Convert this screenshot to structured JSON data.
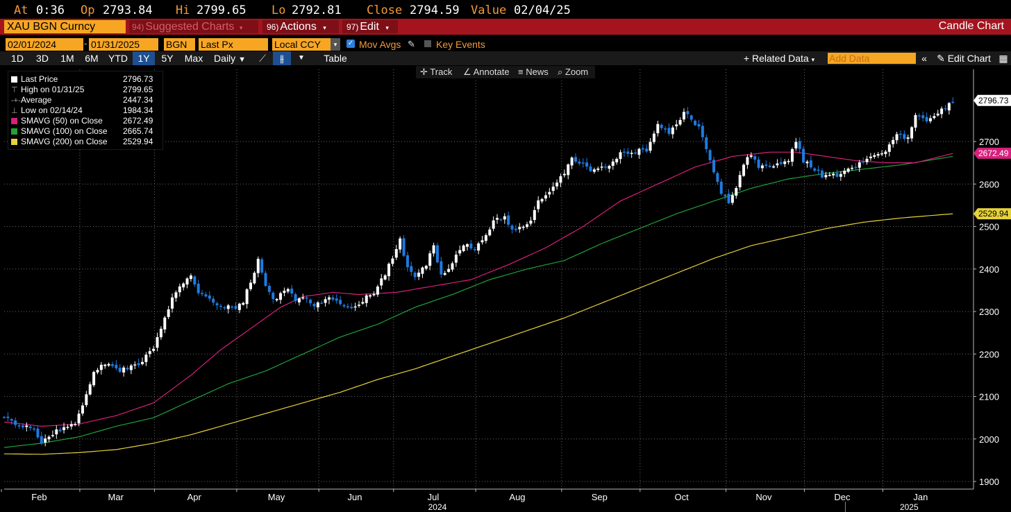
{
  "quote": {
    "at_label": "At",
    "at_value": "0:36",
    "op_label": "Op",
    "op_value": "2793.84",
    "hi_label": "Hi",
    "hi_value": "2799.65",
    "lo_label": "Lo",
    "lo_value": "2792.81",
    "close_label": "Close",
    "close_value": "2794.59",
    "value_label": "Value",
    "value_value": "02/04/25"
  },
  "header": {
    "ticker": "XAU BGN Curncy",
    "suggested_num": "94)",
    "suggested_label": "Suggested Charts",
    "actions_num": "96)",
    "actions_label": "Actions",
    "edit_num": "97)",
    "edit_label": "Edit",
    "chart_type": "Candle Chart"
  },
  "controls": {
    "start_date": "02/01/2024",
    "end_date": "01/31/2025",
    "source": "BGN",
    "field": "Last Px",
    "currency": "Local CCY",
    "mov_avgs": "Mov Avgs",
    "key_events": "Key Events"
  },
  "ranges": [
    "1D",
    "3D",
    "1M",
    "6M",
    "YTD",
    "1Y",
    "5Y",
    "Max"
  ],
  "active_range": "1Y",
  "periodicity": "Daily",
  "table_label": "Table",
  "related_data": "Related Data",
  "add_data_placeholder": "Add Data",
  "edit_chart": "Edit Chart",
  "chart_tools": {
    "track": "Track",
    "annotate": "Annotate",
    "news": "News",
    "zoom": "Zoom"
  },
  "legend": [
    {
      "label": "Last Price",
      "value": "2796.73"
    },
    {
      "label": "High on 01/31/25",
      "value": "2799.65"
    },
    {
      "label": "Average",
      "value": "2447.34"
    },
    {
      "label": "Low on 02/14/24",
      "value": "1984.34"
    },
    {
      "label": "SMAVG (50)  on Close",
      "value": "2672.49"
    },
    {
      "label": "SMAVG (100)  on Close",
      "value": "2665.74"
    },
    {
      "label": "SMAVG (200)  on Close",
      "value": "2529.94"
    }
  ],
  "price_tags": {
    "last": "2796.73",
    "sma50": "2672.49",
    "sma200": "2529.94"
  },
  "colors": {
    "accent_orange": "#f39a3a",
    "header_red": "#a5141e",
    "sma50": "#d6207c",
    "sma100": "#1fa23a",
    "sma200": "#e6d23a",
    "down_candle": "#1e7be0",
    "up_candle": "#ffffff"
  },
  "chart_data": {
    "type": "candlestick",
    "title": "XAU BGN Curncy",
    "y_ticks": [
      1900,
      2000,
      2100,
      2200,
      2300,
      2400,
      2500,
      2600,
      2700
    ],
    "ylim": [
      1880,
      2840
    ],
    "x_month_labels": [
      "Feb",
      "Mar",
      "Apr",
      "May",
      "Jun",
      "Jul",
      "Aug",
      "Sep",
      "Oct",
      "Nov",
      "Dec",
      "Jan"
    ],
    "x_year_labels": [
      {
        "label": "2024",
        "month_index": 5.5
      },
      {
        "label": "2025",
        "month_index": 11.3
      }
    ],
    "month_starts": [
      0,
      21,
      41,
      63,
      85,
      105,
      127,
      150,
      171,
      194,
      215,
      236
    ],
    "total_days": 257,
    "price_path": [
      [
        0,
        2055
      ],
      [
        3,
        2032
      ],
      [
        8,
        2024
      ],
      [
        10,
        1992
      ],
      [
        14,
        2018
      ],
      [
        19,
        2038
      ],
      [
        21,
        2080
      ],
      [
        24,
        2160
      ],
      [
        28,
        2180
      ],
      [
        31,
        2162
      ],
      [
        36,
        2175
      ],
      [
        40,
        2215
      ],
      [
        42,
        2260
      ],
      [
        45,
        2330
      ],
      [
        47,
        2355
      ],
      [
        50,
        2385
      ],
      [
        52,
        2345
      ],
      [
        54,
        2340
      ],
      [
        57,
        2310
      ],
      [
        60,
        2310
      ],
      [
        62,
        2310
      ],
      [
        64,
        2325
      ],
      [
        66,
        2370
      ],
      [
        68,
        2420
      ],
      [
        70,
        2365
      ],
      [
        72,
        2325
      ],
      [
        76,
        2355
      ],
      [
        78,
        2325
      ],
      [
        80,
        2335
      ],
      [
        83,
        2310
      ],
      [
        85,
        2325
      ],
      [
        88,
        2330
      ],
      [
        91,
        2315
      ],
      [
        94,
        2310
      ],
      [
        97,
        2335
      ],
      [
        99,
        2345
      ],
      [
        102,
        2390
      ],
      [
        104,
        2425
      ],
      [
        106,
        2470
      ],
      [
        108,
        2400
      ],
      [
        110,
        2380
      ],
      [
        113,
        2410
      ],
      [
        115,
        2455
      ],
      [
        117,
        2385
      ],
      [
        120,
        2415
      ],
      [
        123,
        2460
      ],
      [
        126,
        2447
      ],
      [
        129,
        2480
      ],
      [
        131,
        2515
      ],
      [
        134,
        2520
      ],
      [
        136,
        2490
      ],
      [
        139,
        2500
      ],
      [
        141,
        2515
      ],
      [
        143,
        2560
      ],
      [
        146,
        2580
      ],
      [
        150,
        2625
      ],
      [
        152,
        2660
      ],
      [
        154,
        2650
      ],
      [
        157,
        2635
      ],
      [
        160,
        2640
      ],
      [
        162,
        2640
      ],
      [
        165,
        2670
      ],
      [
        168,
        2670
      ],
      [
        170,
        2680
      ],
      [
        172,
        2680
      ],
      [
        175,
        2740
      ],
      [
        178,
        2720
      ],
      [
        180,
        2738
      ],
      [
        182,
        2770
      ],
      [
        184,
        2752
      ],
      [
        186,
        2735
      ],
      [
        188,
        2680
      ],
      [
        190,
        2630
      ],
      [
        192,
        2580
      ],
      [
        194,
        2560
      ],
      [
        196,
        2590
      ],
      [
        198,
        2650
      ],
      [
        200,
        2670
      ],
      [
        202,
        2640
      ],
      [
        205,
        2645
      ],
      [
        208,
        2650
      ],
      [
        210,
        2655
      ],
      [
        212,
        2700
      ],
      [
        214,
        2655
      ],
      [
        217,
        2635
      ],
      [
        219,
        2620
      ],
      [
        221,
        2625
      ],
      [
        224,
        2620
      ],
      [
        226,
        2640
      ],
      [
        228,
        2640
      ],
      [
        231,
        2660
      ],
      [
        233,
        2670
      ],
      [
        236,
        2675
      ],
      [
        239,
        2715
      ],
      [
        242,
        2705
      ],
      [
        244,
        2760
      ],
      [
        247,
        2750
      ],
      [
        250,
        2770
      ],
      [
        252,
        2778
      ],
      [
        254,
        2796
      ]
    ],
    "sma50_path": [
      [
        0,
        2040
      ],
      [
        10,
        2030
      ],
      [
        20,
        2035
      ],
      [
        30,
        2055
      ],
      [
        40,
        2085
      ],
      [
        50,
        2150
      ],
      [
        58,
        2210
      ],
      [
        66,
        2260
      ],
      [
        74,
        2310
      ],
      [
        80,
        2335
      ],
      [
        88,
        2345
      ],
      [
        95,
        2340
      ],
      [
        105,
        2345
      ],
      [
        115,
        2360
      ],
      [
        125,
        2375
      ],
      [
        135,
        2410
      ],
      [
        145,
        2450
      ],
      [
        155,
        2500
      ],
      [
        165,
        2560
      ],
      [
        175,
        2600
      ],
      [
        185,
        2640
      ],
      [
        195,
        2665
      ],
      [
        205,
        2675
      ],
      [
        212,
        2675
      ],
      [
        220,
        2665
      ],
      [
        228,
        2655
      ],
      [
        236,
        2650
      ],
      [
        244,
        2650
      ],
      [
        254,
        2672
      ]
    ],
    "sma100_path": [
      [
        0,
        1980
      ],
      [
        10,
        1990
      ],
      [
        20,
        2005
      ],
      [
        30,
        2030
      ],
      [
        40,
        2050
      ],
      [
        50,
        2090
      ],
      [
        60,
        2130
      ],
      [
        70,
        2160
      ],
      [
        80,
        2200
      ],
      [
        90,
        2240
      ],
      [
        100,
        2270
      ],
      [
        110,
        2310
      ],
      [
        120,
        2340
      ],
      [
        130,
        2375
      ],
      [
        140,
        2400
      ],
      [
        150,
        2420
      ],
      [
        160,
        2460
      ],
      [
        170,
        2495
      ],
      [
        180,
        2530
      ],
      [
        190,
        2560
      ],
      [
        200,
        2590
      ],
      [
        210,
        2612
      ],
      [
        220,
        2625
      ],
      [
        230,
        2635
      ],
      [
        240,
        2645
      ],
      [
        254,
        2665
      ]
    ],
    "sma200_path": [
      [
        0,
        1965
      ],
      [
        10,
        1964
      ],
      [
        20,
        1968
      ],
      [
        30,
        1975
      ],
      [
        40,
        1990
      ],
      [
        50,
        2010
      ],
      [
        60,
        2035
      ],
      [
        70,
        2060
      ],
      [
        80,
        2085
      ],
      [
        90,
        2110
      ],
      [
        100,
        2140
      ],
      [
        110,
        2165
      ],
      [
        120,
        2195
      ],
      [
        130,
        2225
      ],
      [
        140,
        2255
      ],
      [
        150,
        2285
      ],
      [
        160,
        2320
      ],
      [
        170,
        2355
      ],
      [
        180,
        2390
      ],
      [
        190,
        2425
      ],
      [
        200,
        2455
      ],
      [
        210,
        2475
      ],
      [
        220,
        2495
      ],
      [
        230,
        2510
      ],
      [
        240,
        2520
      ],
      [
        254,
        2530
      ]
    ]
  }
}
